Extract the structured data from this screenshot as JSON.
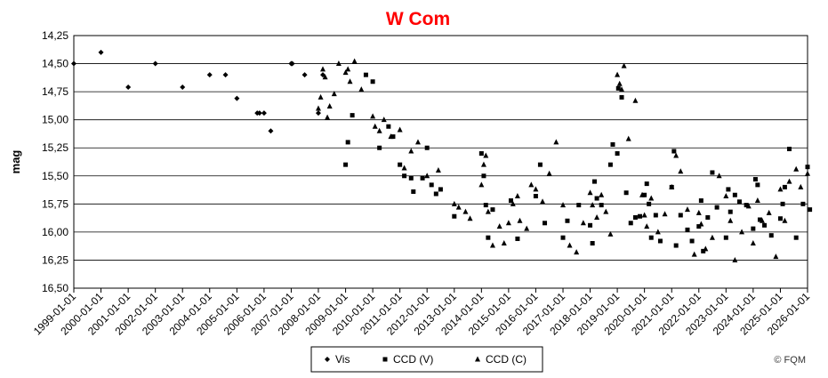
{
  "chart_data": {
    "type": "scatter",
    "title": "W Com",
    "title_color": "#ff0000",
    "ylabel": "mag",
    "xlabel": "",
    "y_inverted": true,
    "ylim": [
      14.25,
      16.5
    ],
    "y_ticks": [
      "14,25",
      "14,50",
      "14,75",
      "15,00",
      "15,25",
      "15,50",
      "15,75",
      "16,00",
      "16,25",
      "16,50"
    ],
    "x_ticks": [
      "1999-01-01",
      "2000-01-01",
      "2001-01-01",
      "2002-01-01",
      "2003-01-01",
      "2004-01-01",
      "2005-01-01",
      "2006-01-01",
      "2007-01-01",
      "2008-01-01",
      "2009-01-01",
      "2010-01-01",
      "2011-01-01",
      "2012-01-01",
      "2013-01-01",
      "2014-01-01",
      "2015-01-01",
      "2016-01-01",
      "2017-01-01",
      "2018-01-01",
      "2019-01-01",
      "2020-01-01",
      "2021-01-01",
      "2022-01-01",
      "2023-01-01",
      "2024-01-01",
      "2025-01-01",
      "2026-01-01"
    ],
    "xlim": [
      "1999-01-01",
      "2026-01-01"
    ],
    "grid": "horizontal",
    "legend_position": "bottom-center",
    "credit": "© FQM",
    "series": [
      {
        "name": "Vis",
        "marker": "diamond",
        "x": [
          "1999-01-01",
          "2000-01-01",
          "2001-01-01",
          "2002-01-01",
          "2003-01-01",
          "2004-01-01",
          "2005-01-01",
          "2006-01-01",
          "2005-10-01",
          "2006-04-01",
          "2007-01-01",
          "2007-01-15",
          "2007-07-01",
          "2004-08-01",
          "2005-11-01",
          "2008-01-01",
          "2008-03-01"
        ],
        "y": [
          14.5,
          14.4,
          14.71,
          14.5,
          14.71,
          14.6,
          14.81,
          14.94,
          14.94,
          15.1,
          14.5,
          14.5,
          14.6,
          14.6,
          14.94,
          14.94,
          14.6
        ]
      },
      {
        "name": "CCD (V)",
        "marker": "square",
        "x": [
          "2009-01-01",
          "2009-02-01",
          "2009-04-01",
          "2009-10-01",
          "2010-01-01",
          "2010-04-01",
          "2010-08-01",
          "2010-10-01",
          "2011-01-01",
          "2011-03-01",
          "2011-06-01",
          "2011-07-01",
          "2011-11-01",
          "2012-01-01",
          "2012-03-01",
          "2012-05-01",
          "2012-07-01",
          "2013-01-01",
          "2014-01-01",
          "2014-02-01",
          "2014-03-01",
          "2014-04-01",
          "2014-06-01",
          "2015-02-01",
          "2015-05-01",
          "2016-01-01",
          "2016-03-01",
          "2016-05-01",
          "2017-01-01",
          "2017-03-01",
          "2017-08-01",
          "2018-01-01",
          "2018-02-01",
          "2018-03-01",
          "2018-04-01",
          "2018-06-01",
          "2018-10-01",
          "2018-11-01",
          "2019-01-01",
          "2019-01-15",
          "2019-03-01",
          "2019-05-01",
          "2019-07-01",
          "2019-09-01",
          "2019-11-01",
          "2020-01-01",
          "2020-02-01",
          "2020-03-01",
          "2020-04-01",
          "2020-06-01",
          "2020-08-01",
          "2021-01-01",
          "2021-02-01",
          "2021-03-01",
          "2021-05-01",
          "2021-08-01",
          "2021-10-01",
          "2022-01-01",
          "2022-02-01",
          "2022-03-01",
          "2022-05-01",
          "2022-07-01",
          "2022-09-01",
          "2023-01-01",
          "2023-02-01",
          "2023-03-01",
          "2023-05-01",
          "2023-07-01",
          "2023-10-01",
          "2024-01-01",
          "2024-02-01",
          "2024-03-01",
          "2024-04-01",
          "2024-06-01",
          "2024-09-01",
          "2025-01-01",
          "2025-02-01",
          "2025-03-01",
          "2025-05-01",
          "2025-08-01",
          "2025-11-01",
          "2026-01-01",
          "2026-02-01"
        ],
        "y": [
          15.4,
          15.2,
          14.96,
          14.6,
          14.66,
          15.25,
          15.06,
          15.15,
          15.4,
          15.5,
          15.52,
          15.64,
          15.52,
          15.25,
          15.58,
          15.66,
          15.62,
          15.86,
          15.3,
          15.5,
          15.76,
          16.05,
          15.8,
          15.72,
          16.06,
          15.68,
          15.4,
          15.92,
          16.05,
          15.9,
          15.76,
          15.94,
          16.1,
          15.55,
          15.7,
          15.76,
          15.4,
          15.22,
          15.3,
          14.72,
          14.8,
          15.65,
          15.92,
          15.87,
          15.86,
          15.67,
          15.57,
          15.75,
          16.05,
          15.85,
          16.08,
          15.6,
          15.28,
          16.12,
          15.85,
          15.98,
          16.08,
          15.95,
          15.72,
          16.17,
          15.87,
          15.47,
          15.78,
          16.05,
          15.62,
          15.82,
          15.67,
          15.73,
          15.76,
          15.97,
          15.53,
          15.58,
          15.89,
          15.94,
          16.03,
          15.88,
          15.75,
          15.6,
          15.26,
          16.05,
          15.75,
          15.42,
          15.8
        ]
      },
      {
        "name": "CCD (C)",
        "marker": "triangle",
        "x": [
          "2008-01-01",
          "2008-02-01",
          "2008-03-01",
          "2008-04-01",
          "2008-05-01",
          "2008-06-01",
          "2008-08-01",
          "2008-10-01",
          "2009-01-01",
          "2009-02-01",
          "2009-03-01",
          "2009-05-01",
          "2009-08-01",
          "2010-01-01",
          "2010-02-01",
          "2010-04-01",
          "2010-06-01",
          "2010-09-01",
          "2011-01-01",
          "2011-03-01",
          "2011-06-01",
          "2011-09-01",
          "2012-01-01",
          "2012-06-01",
          "2013-01-01",
          "2013-03-01",
          "2013-06-01",
          "2013-08-01",
          "2014-01-01",
          "2014-02-01",
          "2014-03-01",
          "2014-04-01",
          "2014-06-01",
          "2014-09-01",
          "2014-11-01",
          "2015-01-01",
          "2015-03-01",
          "2015-05-01",
          "2015-06-01",
          "2015-09-01",
          "2015-11-01",
          "2016-01-01",
          "2016-04-01",
          "2016-07-01",
          "2016-10-01",
          "2017-01-01",
          "2017-04-01",
          "2017-07-01",
          "2017-10-01",
          "2018-01-01",
          "2018-02-01",
          "2018-04-01",
          "2018-06-01",
          "2018-08-01",
          "2018-10-01",
          "2019-01-01",
          "2019-02-01",
          "2019-03-01",
          "2019-04-01",
          "2019-06-01",
          "2019-09-01",
          "2019-12-01",
          "2020-01-01",
          "2020-02-01",
          "2020-04-01",
          "2020-07-01",
          "2020-10-01",
          "2021-01-01",
          "2021-03-01",
          "2021-05-01",
          "2021-08-01",
          "2021-11-01",
          "2022-01-01",
          "2022-02-01",
          "2022-04-01",
          "2022-07-01",
          "2022-10-01",
          "2023-01-01",
          "2023-03-01",
          "2023-05-01",
          "2023-08-01",
          "2023-11-01",
          "2024-01-01",
          "2024-03-01",
          "2024-05-01",
          "2024-08-01",
          "2024-11-01",
          "2025-01-01",
          "2025-03-01",
          "2025-05-01",
          "2025-08-01",
          "2025-10-01",
          "2026-01-01"
        ],
        "y": [
          14.9,
          14.8,
          14.55,
          14.62,
          14.98,
          14.88,
          14.77,
          14.5,
          14.58,
          14.55,
          14.66,
          14.48,
          14.73,
          14.97,
          15.06,
          15.1,
          15.0,
          15.15,
          15.09,
          15.43,
          15.28,
          15.2,
          15.5,
          15.45,
          15.75,
          15.78,
          15.82,
          15.88,
          15.58,
          15.4,
          15.32,
          15.82,
          16.12,
          15.95,
          16.1,
          15.92,
          15.75,
          15.68,
          15.9,
          15.97,
          15.58,
          15.62,
          15.73,
          15.48,
          15.2,
          15.76,
          16.12,
          16.18,
          15.92,
          15.65,
          15.76,
          15.87,
          15.67,
          15.82,
          16.02,
          14.6,
          14.68,
          14.73,
          14.52,
          15.17,
          14.83,
          15.67,
          15.85,
          15.95,
          15.7,
          16.0,
          15.84,
          15.6,
          15.32,
          15.46,
          15.8,
          16.2,
          15.83,
          15.93,
          16.15,
          16.05,
          15.5,
          15.68,
          15.9,
          16.25,
          16.0,
          15.77,
          16.1,
          15.72,
          15.9,
          15.83,
          16.22,
          15.62,
          15.9,
          15.55,
          15.44,
          15.6,
          15.48
        ]
      }
    ]
  }
}
